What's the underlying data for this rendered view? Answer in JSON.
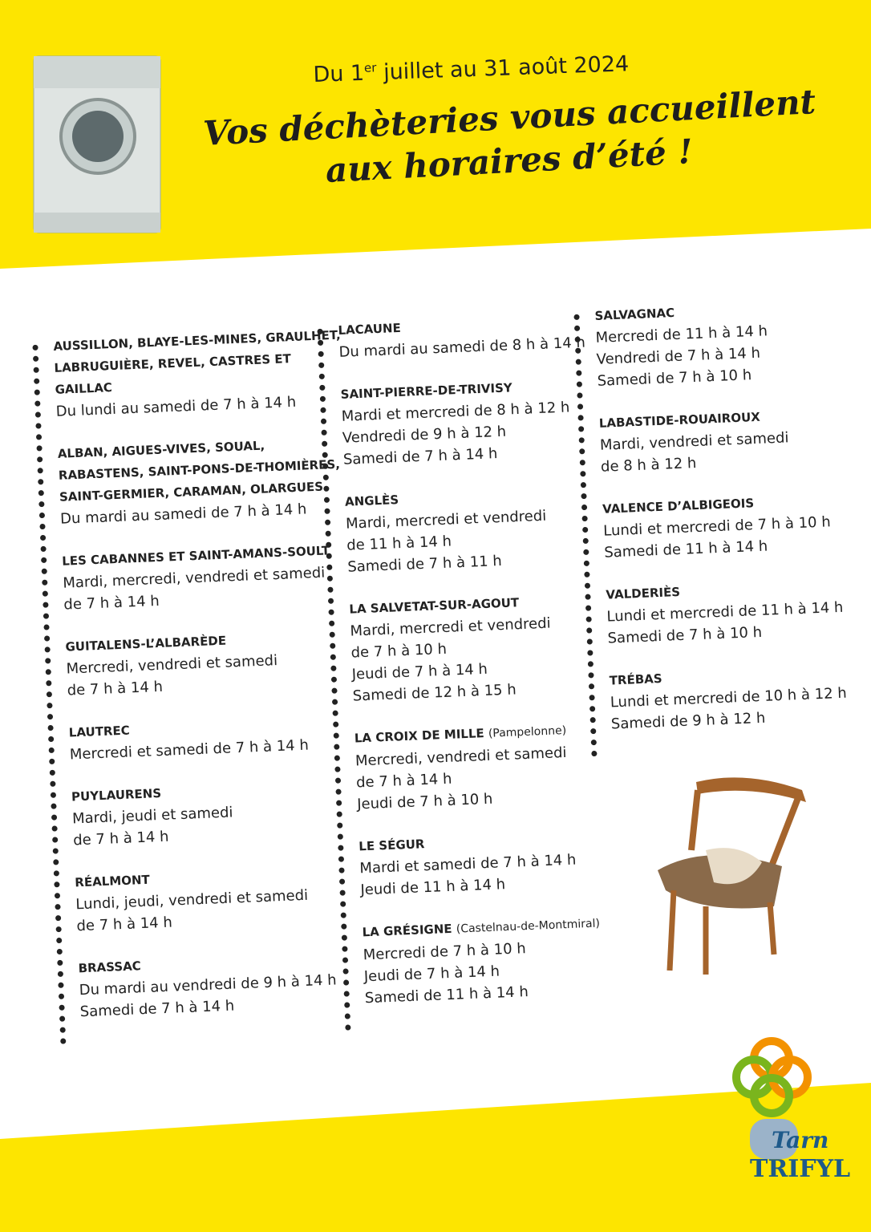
{
  "header": {
    "date": {
      "prefix": "Du 1",
      "sup": "er",
      "rest": "juillet au 31 août 2024"
    },
    "title": [
      "Vos déchèteries vous accueillent",
      "aux horaires d’été !"
    ]
  },
  "columns": [
    [
      {
        "name": "AUSSILLON, BLAYE-LES-MINES, GRAULHET, LABRUGUIÈRE, REVEL, CASTRES ET GAILLAC",
        "lines": [
          "Du lundi au samedi de 7 h à 14 h"
        ]
      },
      {
        "name": "ALBAN, AIGUES-VIVES, SOUAL, RABASTENS, SAINT-PONS-DE-THOMIÈRES, SAINT-GERMIER, CARAMAN, OLARGUES",
        "lines": [
          "Du mardi au samedi de 7 h à 14 h"
        ]
      },
      {
        "name": "LES CABANNES ET SAINT-AMANS-SOULT",
        "lines": [
          "Mardi, mercredi, vendredi et samedi",
          "de 7 h à 14 h"
        ]
      },
      {
        "name": "GUITALENS-L’ALBARÈDE",
        "lines": [
          "Mercredi, vendredi et samedi",
          "de 7 h à 14 h"
        ]
      },
      {
        "name": "LAUTREC",
        "lines": [
          "Mercredi et samedi de 7 h à 14 h"
        ]
      },
      {
        "name": "PUYLAURENS",
        "lines": [
          "Mardi, jeudi et samedi",
          "de 7 h à 14 h"
        ]
      },
      {
        "name": "RÉALMONT",
        "lines": [
          "Lundi, jeudi, vendredi et samedi",
          "de 7 h à 14 h"
        ]
      },
      {
        "name": "BRASSAC",
        "lines": [
          "Du mardi au vendredi de 9 h à 14 h",
          "Samedi de 7 h à 14 h"
        ]
      }
    ],
    [
      {
        "name": "LACAUNE",
        "lines": [
          "Du mardi au samedi de 8 h à 14 h"
        ]
      },
      {
        "name": "SAINT-PIERRE-DE-TRIVISY",
        "lines": [
          "Mardi et mercredi de 8 h à 12 h",
          "Vendredi de 9 h à 12 h",
          "Samedi de 7 h à 14 h"
        ]
      },
      {
        "name": "ANGLÈS",
        "lines": [
          "Mardi, mercredi et vendredi",
          "de 11 h à 14 h",
          "Samedi de 7 h à 11 h"
        ]
      },
      {
        "name": "LA SALVETAT-SUR-AGOUT",
        "lines": [
          "Mardi, mercredi et vendredi",
          "de 7 h à 10 h",
          "Jeudi de 7 h à 14 h",
          "Samedi de 12 h à 15 h"
        ]
      },
      {
        "name": "LA CROIX DE MILLE",
        "note": "(Pampelonne)",
        "lines": [
          "Mercredi, vendredi et samedi",
          "de 7 h à 14 h",
          "Jeudi de 7 h à 10 h"
        ]
      },
      {
        "name": "LE SÉGUR",
        "lines": [
          "Mardi et samedi de 7 h à 14 h",
          "Jeudi de 11 h à 14 h"
        ]
      },
      {
        "name": "LA GRÉSIGNE",
        "note": "(Castelnau-de-Montmiral)",
        "lines": [
          "Mercredi de 7 h à 10 h",
          "Jeudi de 7 h à 14 h",
          "Samedi de 11 h à 14 h"
        ]
      }
    ],
    [
      {
        "name": "SALVAGNAC",
        "lines": [
          "Mercredi de 11 h à 14 h",
          "Vendredi de 7 h à 14 h",
          "Samedi de 7 h à 10 h"
        ]
      },
      {
        "name": "LABASTIDE-ROUAIROUX",
        "lines": [
          "Mardi, vendredi et samedi",
          "de 8 h à 12 h"
        ]
      },
      {
        "name": "VALENCE D’ALBIGEOIS",
        "lines": [
          "Lundi et mercredi de 7 h à 10 h",
          "Samedi de 11 h à 14 h"
        ]
      },
      {
        "name": "VALDERIÈS",
        "lines": [
          "Lundi et mercredi de 11 h à 14 h",
          "Samedi de 7 h à 10 h"
        ]
      },
      {
        "name": "TRÉBAS",
        "lines": [
          "Lundi et mercredi de 10 h à 12 h",
          "Samedi de 9 h à 12 h"
        ]
      }
    ]
  ],
  "logo": {
    "top": "Tarn",
    "bottom": "TRIFYL"
  }
}
